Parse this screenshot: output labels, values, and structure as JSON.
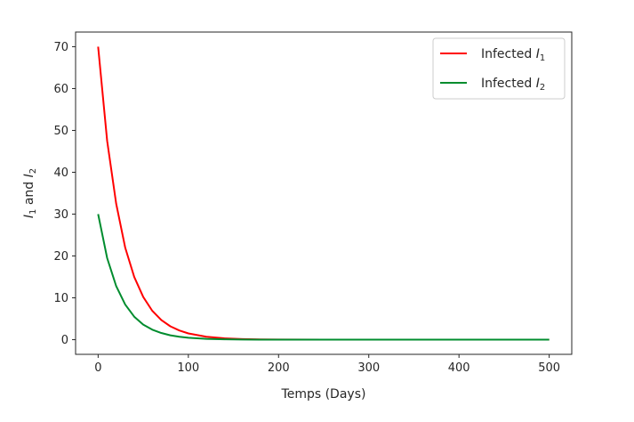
{
  "chart_data": {
    "type": "line",
    "title": "",
    "xlabel": "Temps (Days)",
    "ylabel": {
      "prefix": "I",
      "sub1": "1",
      "mid": " and I",
      "sub2": "2"
    },
    "xlim": [
      -25,
      525
    ],
    "ylim": [
      -3.5,
      73.5
    ],
    "xticks": [
      0,
      100,
      200,
      300,
      400,
      500
    ],
    "yticks": [
      0,
      10,
      20,
      30,
      40,
      50,
      60,
      70
    ],
    "grid": false,
    "legend_position": "top-right",
    "series": [
      {
        "name": "Infected I1",
        "legend_main": "Infected I",
        "legend_sub": "1",
        "color": "#ff0000",
        "x": [
          0,
          10,
          20,
          30,
          40,
          50,
          60,
          70,
          80,
          90,
          100,
          120,
          140,
          160,
          180,
          200,
          250,
          300,
          400,
          500
        ],
        "y": [
          70,
          47.5,
          32.5,
          22,
          15,
          10.2,
          6.9,
          4.7,
          3.2,
          2.2,
          1.5,
          0.7,
          0.32,
          0.15,
          0.07,
          0.03,
          0,
          0,
          0,
          0
        ]
      },
      {
        "name": "Infected I2",
        "legend_main": "Infected I",
        "legend_sub": "2",
        "color": "#008c2e",
        "x": [
          0,
          10,
          20,
          30,
          40,
          50,
          60,
          70,
          80,
          90,
          100,
          120,
          140,
          160,
          180,
          200,
          250,
          300,
          400,
          500
        ],
        "y": [
          30,
          19.5,
          12.8,
          8.4,
          5.5,
          3.6,
          2.4,
          1.6,
          1.05,
          0.7,
          0.45,
          0.2,
          0.09,
          0.04,
          0.02,
          0.01,
          0,
          0,
          0,
          0
        ]
      }
    ]
  }
}
